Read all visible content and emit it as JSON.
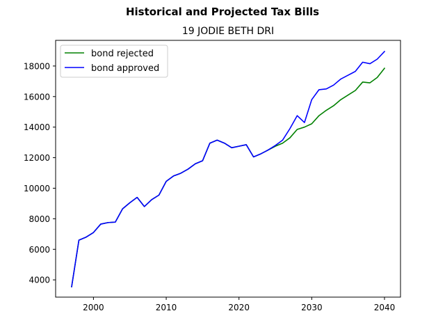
{
  "chart_data": {
    "type": "line",
    "title": "Historical and Projected Tax Bills",
    "subtitle": "19 JODIE BETH DRI",
    "xlabel": "",
    "ylabel": "",
    "xlim": [
      1994.8,
      2042.2
    ],
    "ylim": [
      2870,
      19680
    ],
    "x_ticks": [
      2000,
      2010,
      2020,
      2030,
      2040
    ],
    "y_ticks": [
      4000,
      6000,
      8000,
      10000,
      12000,
      14000,
      16000,
      18000
    ],
    "grid": false,
    "legend_position": "top-left",
    "series": [
      {
        "name": "bond rejected",
        "color": "#008000",
        "x": [
          1997,
          1998,
          1999,
          2000,
          2001,
          2002,
          2003,
          2004,
          2005,
          2006,
          2007,
          2008,
          2009,
          2010,
          2011,
          2012,
          2013,
          2014,
          2015,
          2016,
          2017,
          2018,
          2019,
          2020,
          2021,
          2022,
          2023,
          2024,
          2025,
          2026,
          2027,
          2028,
          2029,
          2030,
          2031,
          2032,
          2033,
          2034,
          2035,
          2036,
          2037,
          2038,
          2039,
          2040
        ],
        "y": [
          3550,
          6600,
          6800,
          7100,
          7650,
          7750,
          7780,
          8650,
          9050,
          9400,
          8800,
          9250,
          9550,
          10450,
          10800,
          10980,
          11250,
          11600,
          11800,
          12950,
          13150,
          12950,
          12650,
          12750,
          12850,
          12050,
          12250,
          12500,
          12750,
          12950,
          13300,
          13850,
          14000,
          14220,
          14750,
          15100,
          15400,
          15800,
          16100,
          16400,
          16950,
          16900,
          17250,
          17850
        ]
      },
      {
        "name": "bond approved",
        "color": "#0000ff",
        "x": [
          1997,
          1998,
          1999,
          2000,
          2001,
          2002,
          2003,
          2004,
          2005,
          2006,
          2007,
          2008,
          2009,
          2010,
          2011,
          2012,
          2013,
          2014,
          2015,
          2016,
          2017,
          2018,
          2019,
          2020,
          2021,
          2022,
          2023,
          2024,
          2025,
          2026,
          2027,
          2028,
          2029,
          2030,
          2031,
          2032,
          2033,
          2034,
          2035,
          2036,
          2037,
          2038,
          2039,
          2040
        ],
        "y": [
          3550,
          6600,
          6800,
          7100,
          7650,
          7750,
          7780,
          8650,
          9050,
          9400,
          8800,
          9250,
          9550,
          10450,
          10800,
          10980,
          11250,
          11600,
          11800,
          12950,
          13150,
          12950,
          12650,
          12750,
          12850,
          12050,
          12250,
          12500,
          12800,
          13150,
          13900,
          14750,
          14300,
          15800,
          16450,
          16500,
          16750,
          17150,
          17400,
          17650,
          18250,
          18150,
          18450,
          18950
        ]
      }
    ]
  }
}
